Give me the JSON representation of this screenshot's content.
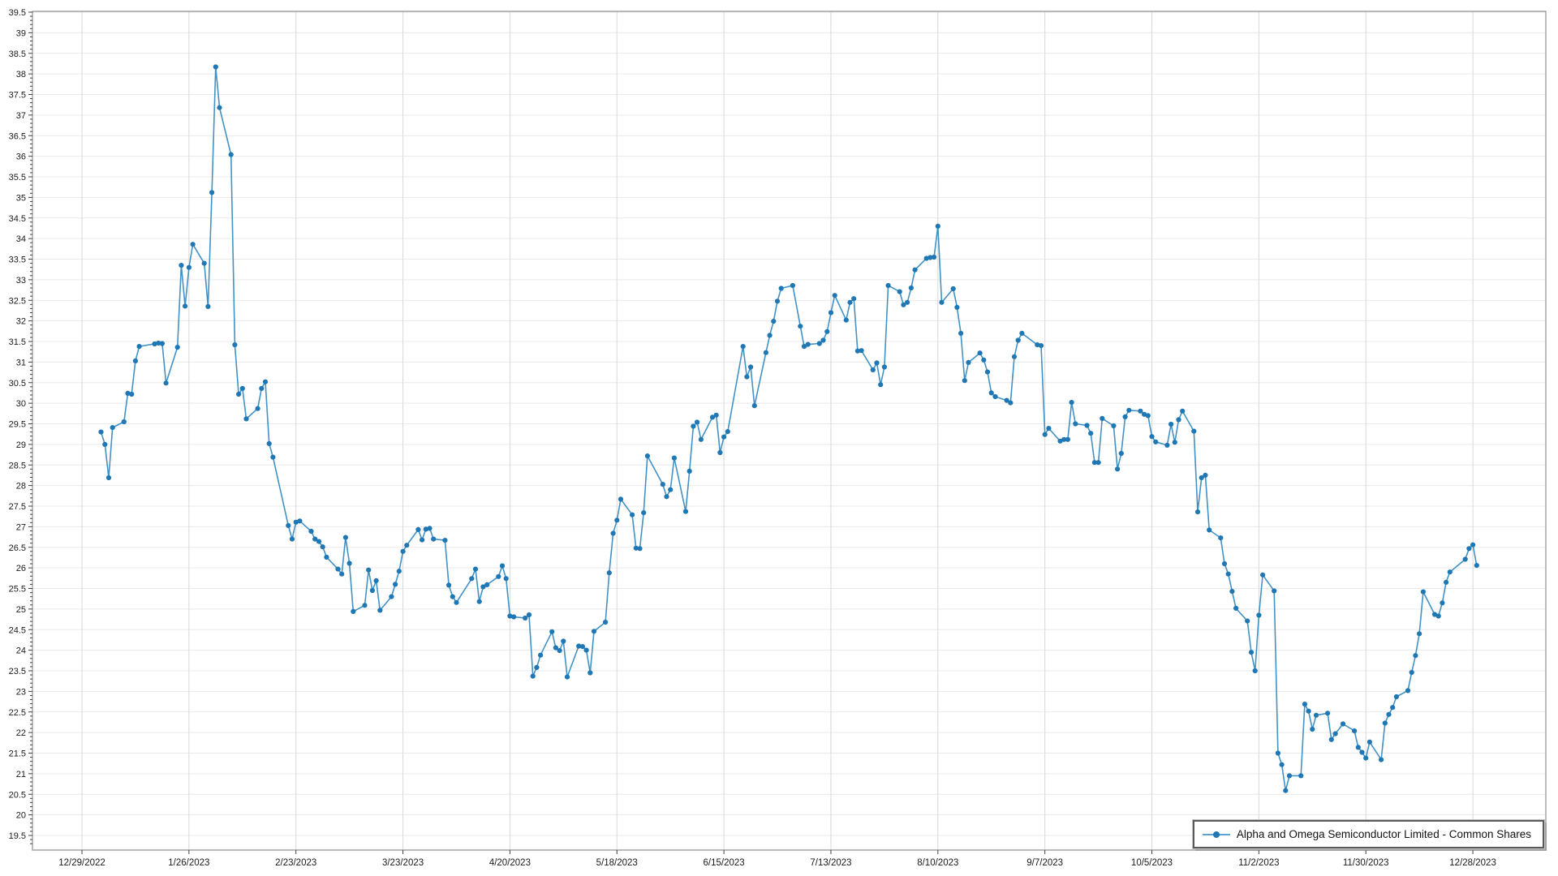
{
  "chart_data": {
    "type": "line",
    "title": "",
    "legend": {
      "label": "Alpha and Omega Semiconductor Limited - Common Shares",
      "position": "bottom-right"
    },
    "colors": {
      "line": "#4292c6",
      "marker": "#1f77b4",
      "grid_horizontal": "#e9e9e9",
      "grid_vertical": "#d8d8d8",
      "frame": "#8f8f8f",
      "tick": "#3f3f3f",
      "tick_label": "#1a1a1a",
      "background": "#ffffff"
    },
    "y_axis": {
      "min": 19.5,
      "max": 39.5,
      "step": 0.5,
      "minor_step": 0.1,
      "grid": true
    },
    "x_axis": {
      "grid": true,
      "tick_interval_days": 28
    },
    "x_ticks": [
      {
        "date": "2022-12-29",
        "label": "12/29/2022"
      },
      {
        "date": "2023-01-26",
        "label": "1/26/2023"
      },
      {
        "date": "2023-02-23",
        "label": "2/23/2023"
      },
      {
        "date": "2023-03-23",
        "label": "3/23/2023"
      },
      {
        "date": "2023-04-20",
        "label": "4/20/2023"
      },
      {
        "date": "2023-05-18",
        "label": "5/18/2023"
      },
      {
        "date": "2023-06-15",
        "label": "6/15/2023"
      },
      {
        "date": "2023-07-13",
        "label": "7/13/2023"
      },
      {
        "date": "2023-08-10",
        "label": "8/10/2023"
      },
      {
        "date": "2023-09-07",
        "label": "9/7/2023"
      },
      {
        "date": "2023-10-05",
        "label": "10/5/2023"
      },
      {
        "date": "2023-11-02",
        "label": "11/2/2023"
      },
      {
        "date": "2023-11-30",
        "label": "11/30/2023"
      },
      {
        "date": "2023-12-28",
        "label": "12/28/2023"
      }
    ],
    "series": [
      {
        "name": "Alpha and Omega Semiconductor Limited - Common Shares",
        "points": [
          [
            "2023-01-03",
            29.3
          ],
          [
            "2023-01-04",
            29.0
          ],
          [
            "2023-01-05",
            28.19
          ],
          [
            "2023-01-06",
            29.41
          ],
          [
            "2023-01-09",
            29.55
          ],
          [
            "2023-01-10",
            30.24
          ],
          [
            "2023-01-11",
            30.22
          ],
          [
            "2023-01-12",
            31.03
          ],
          [
            "2023-01-13",
            31.38
          ],
          [
            "2023-01-17",
            31.44
          ],
          [
            "2023-01-18",
            31.46
          ],
          [
            "2023-01-19",
            31.45
          ],
          [
            "2023-01-20",
            30.49
          ],
          [
            "2023-01-23",
            31.36
          ],
          [
            "2023-01-24",
            33.35
          ],
          [
            "2023-01-25",
            32.36
          ],
          [
            "2023-01-26",
            33.3
          ],
          [
            "2023-01-27",
            33.86
          ],
          [
            "2023-01-30",
            33.4
          ],
          [
            "2023-01-31",
            32.35
          ],
          [
            "2023-02-01",
            35.12
          ],
          [
            "2023-02-02",
            38.17
          ],
          [
            "2023-02-03",
            37.18
          ],
          [
            "2023-02-06",
            36.04
          ],
          [
            "2023-02-07",
            31.42
          ],
          [
            "2023-02-08",
            30.22
          ],
          [
            "2023-02-09",
            30.36
          ],
          [
            "2023-02-10",
            29.62
          ],
          [
            "2023-02-13",
            29.87
          ],
          [
            "2023-02-14",
            30.36
          ],
          [
            "2023-02-15",
            30.52
          ],
          [
            "2023-02-16",
            29.02
          ],
          [
            "2023-02-17",
            28.69
          ],
          [
            "2023-02-21",
            27.03
          ],
          [
            "2023-02-22",
            26.7
          ],
          [
            "2023-02-23",
            27.11
          ],
          [
            "2023-02-24",
            27.14
          ],
          [
            "2023-02-27",
            26.89
          ],
          [
            "2023-02-28",
            26.7
          ],
          [
            "2023-03-01",
            26.64
          ],
          [
            "2023-03-02",
            26.51
          ],
          [
            "2023-03-03",
            26.26
          ],
          [
            "2023-03-06",
            25.97
          ],
          [
            "2023-03-07",
            25.85
          ],
          [
            "2023-03-08",
            26.74
          ],
          [
            "2023-03-09",
            26.11
          ],
          [
            "2023-03-10",
            24.94
          ],
          [
            "2023-03-13",
            25.09
          ],
          [
            "2023-03-14",
            25.95
          ],
          [
            "2023-03-15",
            25.45
          ],
          [
            "2023-03-16",
            25.69
          ],
          [
            "2023-03-17",
            24.97
          ],
          [
            "2023-03-20",
            25.3
          ],
          [
            "2023-03-21",
            25.6
          ],
          [
            "2023-03-22",
            25.92
          ],
          [
            "2023-03-23",
            26.4
          ],
          [
            "2023-03-24",
            26.55
          ],
          [
            "2023-03-27",
            26.93
          ],
          [
            "2023-03-28",
            26.68
          ],
          [
            "2023-03-29",
            26.94
          ],
          [
            "2023-03-30",
            26.96
          ],
          [
            "2023-03-31",
            26.7
          ],
          [
            "2023-04-03",
            26.67
          ],
          [
            "2023-04-04",
            25.58
          ],
          [
            "2023-04-05",
            25.3
          ],
          [
            "2023-04-06",
            25.16
          ],
          [
            "2023-04-10",
            25.74
          ],
          [
            "2023-04-11",
            25.97
          ],
          [
            "2023-04-12",
            25.18
          ],
          [
            "2023-04-13",
            25.54
          ],
          [
            "2023-04-14",
            25.59
          ],
          [
            "2023-04-17",
            25.79
          ],
          [
            "2023-04-18",
            26.05
          ],
          [
            "2023-04-19",
            25.74
          ],
          [
            "2023-04-20",
            24.83
          ],
          [
            "2023-04-21",
            24.81
          ],
          [
            "2023-04-24",
            24.78
          ],
          [
            "2023-04-25",
            24.86
          ],
          [
            "2023-04-26",
            23.37
          ],
          [
            "2023-04-27",
            23.58
          ],
          [
            "2023-04-28",
            23.88
          ],
          [
            "2023-05-01",
            24.45
          ],
          [
            "2023-05-02",
            24.06
          ],
          [
            "2023-05-03",
            23.99
          ],
          [
            "2023-05-04",
            24.22
          ],
          [
            "2023-05-05",
            23.35
          ],
          [
            "2023-05-08",
            24.1
          ],
          [
            "2023-05-09",
            24.09
          ],
          [
            "2023-05-10",
            24.0
          ],
          [
            "2023-05-11",
            23.45
          ],
          [
            "2023-05-12",
            24.46
          ],
          [
            "2023-05-15",
            24.68
          ],
          [
            "2023-05-16",
            25.88
          ],
          [
            "2023-05-17",
            26.84
          ],
          [
            "2023-05-18",
            27.16
          ],
          [
            "2023-05-19",
            27.67
          ],
          [
            "2023-05-22",
            27.29
          ],
          [
            "2023-05-23",
            26.48
          ],
          [
            "2023-05-24",
            26.47
          ],
          [
            "2023-05-25",
            27.34
          ],
          [
            "2023-05-26",
            28.72
          ],
          [
            "2023-05-30",
            28.03
          ],
          [
            "2023-05-31",
            27.73
          ],
          [
            "2023-06-01",
            27.9
          ],
          [
            "2023-06-02",
            28.67
          ],
          [
            "2023-06-05",
            27.37
          ],
          [
            "2023-06-06",
            28.35
          ],
          [
            "2023-06-07",
            29.44
          ],
          [
            "2023-06-08",
            29.54
          ],
          [
            "2023-06-09",
            29.12
          ],
          [
            "2023-06-12",
            29.66
          ],
          [
            "2023-06-13",
            29.71
          ],
          [
            "2023-06-14",
            28.8
          ],
          [
            "2023-06-15",
            29.18
          ],
          [
            "2023-06-16",
            29.31
          ],
          [
            "2023-06-20",
            31.38
          ],
          [
            "2023-06-21",
            30.64
          ],
          [
            "2023-06-22",
            30.88
          ],
          [
            "2023-06-23",
            29.94
          ],
          [
            "2023-06-26",
            31.23
          ],
          [
            "2023-06-27",
            31.65
          ],
          [
            "2023-06-28",
            31.99
          ],
          [
            "2023-06-29",
            32.48
          ],
          [
            "2023-06-30",
            32.79
          ],
          [
            "2023-07-03",
            32.86
          ],
          [
            "2023-07-05",
            31.87
          ],
          [
            "2023-07-06",
            31.38
          ],
          [
            "2023-07-07",
            31.43
          ],
          [
            "2023-07-10",
            31.45
          ],
          [
            "2023-07-11",
            31.53
          ],
          [
            "2023-07-12",
            31.74
          ],
          [
            "2023-07-13",
            32.2
          ],
          [
            "2023-07-14",
            32.62
          ],
          [
            "2023-07-17",
            32.02
          ],
          [
            "2023-07-18",
            32.45
          ],
          [
            "2023-07-19",
            32.54
          ],
          [
            "2023-07-20",
            31.27
          ],
          [
            "2023-07-21",
            31.28
          ],
          [
            "2023-07-24",
            30.81
          ],
          [
            "2023-07-25",
            30.98
          ],
          [
            "2023-07-26",
            30.45
          ],
          [
            "2023-07-27",
            30.88
          ],
          [
            "2023-07-28",
            32.86
          ],
          [
            "2023-07-31",
            32.71
          ],
          [
            "2023-08-01",
            32.39
          ],
          [
            "2023-08-02",
            32.45
          ],
          [
            "2023-08-03",
            32.8
          ],
          [
            "2023-08-04",
            33.24
          ],
          [
            "2023-08-07",
            33.52
          ],
          [
            "2023-08-08",
            33.54
          ],
          [
            "2023-08-09",
            33.55
          ],
          [
            "2023-08-10",
            34.3
          ],
          [
            "2023-08-11",
            32.45
          ],
          [
            "2023-08-14",
            32.78
          ],
          [
            "2023-08-15",
            32.33
          ],
          [
            "2023-08-16",
            31.7
          ],
          [
            "2023-08-17",
            30.55
          ],
          [
            "2023-08-18",
            30.99
          ],
          [
            "2023-08-21",
            31.22
          ],
          [
            "2023-08-22",
            31.05
          ],
          [
            "2023-08-23",
            30.76
          ],
          [
            "2023-08-24",
            30.25
          ],
          [
            "2023-08-25",
            30.16
          ],
          [
            "2023-08-28",
            30.07
          ],
          [
            "2023-08-29",
            30.01
          ],
          [
            "2023-08-30",
            31.13
          ],
          [
            "2023-08-31",
            31.53
          ],
          [
            "2023-09-01",
            31.7
          ],
          [
            "2023-09-05",
            31.42
          ],
          [
            "2023-09-06",
            31.4
          ],
          [
            "2023-09-07",
            29.24
          ],
          [
            "2023-09-08",
            29.39
          ],
          [
            "2023-09-11",
            29.08
          ],
          [
            "2023-09-12",
            29.12
          ],
          [
            "2023-09-13",
            29.12
          ],
          [
            "2023-09-14",
            30.02
          ],
          [
            "2023-09-15",
            29.5
          ],
          [
            "2023-09-18",
            29.46
          ],
          [
            "2023-09-19",
            29.27
          ],
          [
            "2023-09-20",
            28.56
          ],
          [
            "2023-09-21",
            28.56
          ],
          [
            "2023-09-22",
            29.63
          ],
          [
            "2023-09-25",
            29.45
          ],
          [
            "2023-09-26",
            28.4
          ],
          [
            "2023-09-27",
            28.78
          ],
          [
            "2023-09-28",
            29.67
          ],
          [
            "2023-09-29",
            29.83
          ],
          [
            "2023-10-02",
            29.81
          ],
          [
            "2023-10-03",
            29.73
          ],
          [
            "2023-10-04",
            29.7
          ],
          [
            "2023-10-05",
            29.19
          ],
          [
            "2023-10-06",
            29.06
          ],
          [
            "2023-10-09",
            28.98
          ],
          [
            "2023-10-10",
            29.49
          ],
          [
            "2023-10-11",
            29.05
          ],
          [
            "2023-10-12",
            29.6
          ],
          [
            "2023-10-13",
            29.81
          ],
          [
            "2023-10-16",
            29.32
          ],
          [
            "2023-10-17",
            27.36
          ],
          [
            "2023-10-18",
            28.19
          ],
          [
            "2023-10-19",
            28.25
          ],
          [
            "2023-10-20",
            26.92
          ],
          [
            "2023-10-23",
            26.73
          ],
          [
            "2023-10-24",
            26.1
          ],
          [
            "2023-10-25",
            25.85
          ],
          [
            "2023-10-26",
            25.43
          ],
          [
            "2023-10-27",
            25.02
          ],
          [
            "2023-10-30",
            24.71
          ],
          [
            "2023-10-31",
            23.95
          ],
          [
            "2023-11-01",
            23.5
          ],
          [
            "2023-11-02",
            24.85
          ],
          [
            "2023-11-03",
            25.83
          ],
          [
            "2023-11-06",
            25.44
          ],
          [
            "2023-11-07",
            21.5
          ],
          [
            "2023-11-08",
            21.22
          ],
          [
            "2023-11-09",
            20.59
          ],
          [
            "2023-11-10",
            20.95
          ],
          [
            "2023-11-13",
            20.95
          ],
          [
            "2023-11-14",
            22.69
          ],
          [
            "2023-11-15",
            22.52
          ],
          [
            "2023-11-16",
            22.08
          ],
          [
            "2023-11-17",
            22.42
          ],
          [
            "2023-11-20",
            22.47
          ],
          [
            "2023-11-21",
            21.83
          ],
          [
            "2023-11-22",
            21.97
          ],
          [
            "2023-11-24",
            22.21
          ],
          [
            "2023-11-27",
            22.04
          ],
          [
            "2023-11-28",
            21.64
          ],
          [
            "2023-11-29",
            21.52
          ],
          [
            "2023-11-30",
            21.38
          ],
          [
            "2023-12-01",
            21.77
          ],
          [
            "2023-12-04",
            21.34
          ],
          [
            "2023-12-05",
            22.23
          ],
          [
            "2023-12-06",
            22.44
          ],
          [
            "2023-12-07",
            22.61
          ],
          [
            "2023-12-08",
            22.87
          ],
          [
            "2023-12-11",
            23.02
          ],
          [
            "2023-12-12",
            23.46
          ],
          [
            "2023-12-13",
            23.87
          ],
          [
            "2023-12-14",
            24.4
          ],
          [
            "2023-12-15",
            25.42
          ],
          [
            "2023-12-18",
            24.87
          ],
          [
            "2023-12-19",
            24.83
          ],
          [
            "2023-12-20",
            25.15
          ],
          [
            "2023-12-21",
            25.65
          ],
          [
            "2023-12-22",
            25.9
          ],
          [
            "2023-12-26",
            26.21
          ],
          [
            "2023-12-27",
            26.47
          ],
          [
            "2023-12-28",
            26.56
          ],
          [
            "2023-12-29",
            26.06
          ]
        ]
      }
    ]
  }
}
